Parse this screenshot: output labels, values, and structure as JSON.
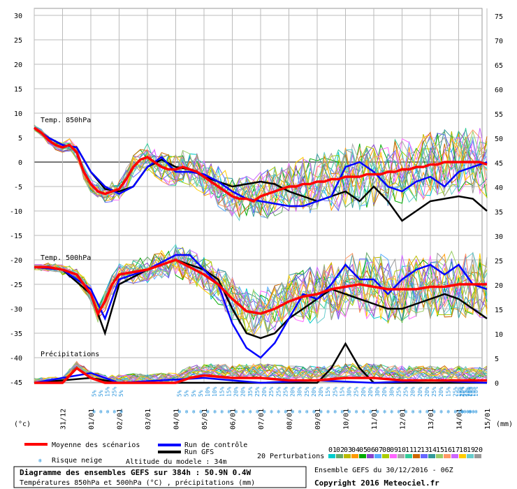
{
  "chart_data": {
    "type": "line",
    "left_axis": {
      "unit": "(°c)",
      "ticks": [
        30,
        25,
        20,
        15,
        10,
        5,
        0,
        -5,
        -10,
        -15,
        -20,
        -25,
        -30,
        -35,
        -40,
        -45
      ],
      "range": [
        -45,
        30
      ]
    },
    "right_axis": {
      "unit": "(mm)",
      "ticks": [
        75,
        70,
        65,
        60,
        55,
        50,
        45,
        40,
        35,
        30,
        25,
        20,
        15,
        10,
        5,
        0
      ],
      "range": [
        0,
        75
      ]
    },
    "x_labels": [
      "31/12",
      "01/01",
      "02/01",
      "03/01",
      "04/01",
      "05/01",
      "06/01",
      "07/01",
      "08/01",
      "09/01",
      "10/01",
      "11/01",
      "12/01",
      "13/01",
      "14/01",
      "15/01"
    ],
    "sections": {
      "t850": "Temp. 850hPa",
      "t500": "Temp. 500hPa",
      "precip": "Précipitations"
    },
    "snow_risk": [
      "5%",
      "5%",
      "15%",
      "25%",
      "5%",
      "5%",
      "5%",
      "5%",
      "5%",
      "10%",
      "10%",
      "15%",
      "15%",
      "20%",
      "20%",
      "35%",
      "25%",
      "20%",
      "25%",
      "25%",
      "25%",
      "20%",
      "30%",
      "25%",
      "20%",
      "20%",
      "15%",
      "25%",
      "15%",
      "30%",
      "25%",
      "20%",
      "20%",
      "30%",
      "20%",
      "30%",
      "25%",
      "25%",
      "20%",
      "20%",
      "20%",
      "25%",
      "20%",
      "15%",
      "25%",
      "15%",
      "20%",
      "10%",
      "20%",
      "5%",
      "10%",
      "10%",
      "10%",
      "10%"
    ],
    "series": [
      {
        "name": "Moyenne des scénarios",
        "color": "#ff0000",
        "group": "t850",
        "x": [
          0,
          0.25,
          0.5,
          0.75,
          1,
          1.25,
          1.5,
          1.75,
          2,
          2.25,
          2.5,
          2.75,
          3,
          3.25,
          3.5,
          3.75,
          4,
          4.25,
          4.5,
          4.75,
          5,
          5.25,
          5.5,
          5.75,
          6,
          6.25,
          6.5,
          6.75,
          7,
          7.25,
          7.5,
          7.75,
          8,
          8.25,
          8.5,
          8.75,
          9,
          9.25,
          9.5,
          9.75,
          10,
          10.25,
          10.5,
          10.75,
          11,
          11.25,
          11.5,
          11.75,
          12,
          12.25,
          12.5,
          12.75,
          13,
          13.25,
          13.5,
          13.75,
          14,
          14.25,
          14.5,
          14.75,
          15,
          15.25,
          15.5,
          15.75,
          16
        ],
        "y": [
          7,
          6,
          4.5,
          3.5,
          3,
          3.5,
          2,
          -2,
          -4.5,
          -6,
          -6.5,
          -6,
          -5.5,
          -3.5,
          -1,
          0.5,
          1,
          0,
          -1,
          -1.5,
          -1.5,
          -1,
          -1.5,
          -2,
          -3,
          -4,
          -5,
          -6,
          -7,
          -7.5,
          -7.5,
          -8,
          -7,
          -6.5,
          -6,
          -5.5,
          -5,
          -5,
          -4.5,
          -4.5,
          -4,
          -4,
          -3.5,
          -3.5,
          -3,
          -3,
          -3,
          -2.5,
          -2.5,
          -2.5,
          -2,
          -2,
          -1.5,
          -1.5,
          -1,
          -1,
          -0.5,
          -0.5,
          0,
          0,
          0,
          0,
          0,
          0,
          -0.5
        ]
      },
      {
        "name": "Moyenne des scénarios",
        "color": "#ff0000",
        "group": "t500",
        "x": [
          0,
          0.5,
          1,
          1.5,
          2,
          2.25,
          2.5,
          2.75,
          3,
          3.5,
          4,
          4.5,
          5,
          5.5,
          6,
          6.5,
          7,
          7.5,
          8,
          8.5,
          9,
          9.5,
          10,
          10.5,
          11,
          11.5,
          12,
          12.5,
          13,
          13.5,
          14,
          14.5,
          15,
          15.5,
          16
        ],
        "y": [
          -21.5,
          -21.5,
          -22,
          -23,
          -27,
          -31,
          -28.5,
          -25,
          -23,
          -22.5,
          -22,
          -21,
          -20,
          -21.5,
          -23,
          -25,
          -28,
          -30.5,
          -31,
          -30,
          -28.5,
          -27.5,
          -27,
          -26,
          -25.5,
          -25,
          -25.5,
          -26,
          -26,
          -26,
          -25.5,
          -25.5,
          -25,
          -25,
          -25
        ]
      },
      {
        "name": "Moyenne des scénarios",
        "color": "#ff0000",
        "group": "precip",
        "x": [
          0,
          1,
          1.5,
          2,
          2.5,
          3,
          4,
          5,
          5.5,
          6,
          7,
          8,
          9,
          10,
          11,
          12,
          13,
          14,
          15,
          16
        ],
        "y": [
          0,
          0,
          3,
          1,
          0,
          0,
          0,
          0,
          1,
          1.5,
          1,
          1,
          0.5,
          0.5,
          1,
          1,
          0.5,
          0.5,
          0.5,
          0.5
        ]
      },
      {
        "name": "Run de contrôle",
        "color": "#0000ff",
        "group": "t850",
        "x": [
          0,
          0.5,
          1,
          1.5,
          2,
          2.5,
          3,
          3.5,
          4,
          4.5,
          5,
          5.5,
          6,
          6.5,
          7,
          7.5,
          8,
          8.5,
          9,
          9.5,
          10,
          10.5,
          11,
          11.5,
          12,
          12.5,
          13,
          13.5,
          14,
          14.5,
          15,
          15.5,
          16
        ],
        "y": [
          7,
          5,
          3.5,
          3,
          -2,
          -5,
          -6.5,
          -5,
          -1,
          1,
          -2,
          -2,
          -2.5,
          -4,
          -6,
          -7.5,
          -8,
          -8.5,
          -9,
          -9,
          -8,
          -7,
          -1,
          0,
          -2,
          -5,
          -6,
          -4,
          -3,
          -5,
          -2,
          -1,
          0
        ]
      },
      {
        "name": "Run de contrôle",
        "color": "#0000ff",
        "group": "t500",
        "x": [
          0,
          1,
          2,
          2.5,
          3,
          4,
          5,
          5.5,
          6,
          6.5,
          7,
          7.5,
          8,
          8.5,
          9,
          9.5,
          10,
          10.5,
          11,
          11.5,
          12,
          12.5,
          13,
          13.5,
          14,
          14.5,
          15,
          15.5,
          16
        ],
        "y": [
          -21.5,
          -22,
          -26,
          -32,
          -24,
          -22,
          -19,
          -19,
          -22,
          -25,
          -33,
          -38,
          -40,
          -37,
          -32,
          -27,
          -28,
          -25,
          -21,
          -24,
          -24,
          -27,
          -24,
          -22,
          -21,
          -23,
          -21,
          -25,
          -26
        ]
      },
      {
        "name": "Run de contrôle",
        "color": "#0000ff",
        "group": "precip",
        "x": [
          0,
          2,
          3,
          6,
          8,
          10,
          12,
          14,
          16
        ],
        "y": [
          0,
          2,
          0,
          1,
          0,
          0.5,
          0,
          0.5,
          0
        ]
      },
      {
        "name": "Run GFS",
        "color": "#000000",
        "group": "t850",
        "x": [
          0,
          0.5,
          1,
          1.5,
          2,
          2.5,
          3,
          3.5,
          4,
          4.5,
          5,
          5.5,
          6,
          6.5,
          7,
          7.5,
          8,
          8.5,
          9,
          9.5,
          10,
          10.5,
          11,
          11.5,
          12,
          12.5,
          13,
          13.5,
          14,
          14.5,
          15,
          15.5,
          16
        ],
        "y": [
          7,
          5,
          3.5,
          3,
          -2,
          -5.5,
          -6,
          -5,
          -1,
          0.5,
          -1,
          -1.5,
          -3,
          -4,
          -5,
          -4.5,
          -4,
          -4.5,
          -6,
          -7,
          -8,
          -7,
          -6,
          -8,
          -5,
          -8,
          -12,
          -10,
          -8,
          -7.5,
          -7,
          -7.5,
          -10
        ]
      },
      {
        "name": "Run GFS",
        "color": "#000000",
        "group": "t500",
        "x": [
          0,
          1,
          2,
          2.5,
          3,
          4,
          5,
          5.5,
          6,
          6.5,
          7,
          7.5,
          8,
          8.5,
          9,
          9.5,
          10,
          10.5,
          11,
          11.5,
          12,
          12.5,
          13,
          13.5,
          14,
          14.5,
          15,
          15.5,
          16
        ],
        "y": [
          -21.5,
          -22,
          -27,
          -35,
          -25,
          -22,
          -20,
          -21,
          -22,
          -24,
          -30,
          -35,
          -36,
          -35,
          -32,
          -30,
          -28,
          -26,
          -27,
          -28,
          -29,
          -30,
          -30,
          -29,
          -28,
          -27,
          -28,
          -30,
          -32
        ]
      },
      {
        "name": "Run GFS",
        "color": "#000000",
        "group": "precip",
        "x": [
          0,
          2,
          3,
          8,
          10,
          10.5,
          11,
          11.5,
          12,
          14,
          16
        ],
        "y": [
          0,
          1,
          0,
          0,
          0,
          3,
          8,
          3,
          0,
          0,
          0
        ]
      }
    ],
    "perturbations": {
      "count_label": "20 Perturbations",
      "colors": [
        "#00cccc",
        "#66aa66",
        "#bbbb00",
        "#ff9900",
        "#00aa00",
        "#8844cc",
        "#55aaff",
        "#aacc00",
        "#ff66ff",
        "#aaaaaa",
        "#33cc99",
        "#cc6600",
        "#6666ff",
        "#339999",
        "#99cc66",
        "#ff9966",
        "#cc66ff",
        "#ffcc00",
        "#66cccc",
        "#999999"
      ],
      "labels": [
        "01",
        "02",
        "03",
        "04",
        "05",
        "06",
        "07",
        "08",
        "09",
        "10",
        "11",
        "12",
        "13",
        "14",
        "15",
        "16",
        "17",
        "18",
        "19",
        "20"
      ]
    }
  },
  "legend": {
    "mean": "Moyenne des scénarios",
    "control": "Run de contrôle",
    "gfs": "Run GFS",
    "snow": "Risque neige",
    "altitude": "Altitude du modele : 34m",
    "perturbations": "20 Perturbations"
  },
  "footer": {
    "title": "Diagramme des ensembles GEFS sur 384h : 50.9N 0.4W",
    "subtitle": "Températures 850hPa et 500hPa (°C) , précipitations (mm)",
    "run": "Ensemble GEFS du 30/12/2016 - 06Z",
    "copyright": "Copyright 2016 Meteociel.fr"
  },
  "colors": {
    "mean": "#ff0000",
    "control": "#0000ff",
    "gfs": "#000000",
    "grid": "#bbbbbb",
    "zero": "#777777",
    "snow": "#3399dd"
  }
}
